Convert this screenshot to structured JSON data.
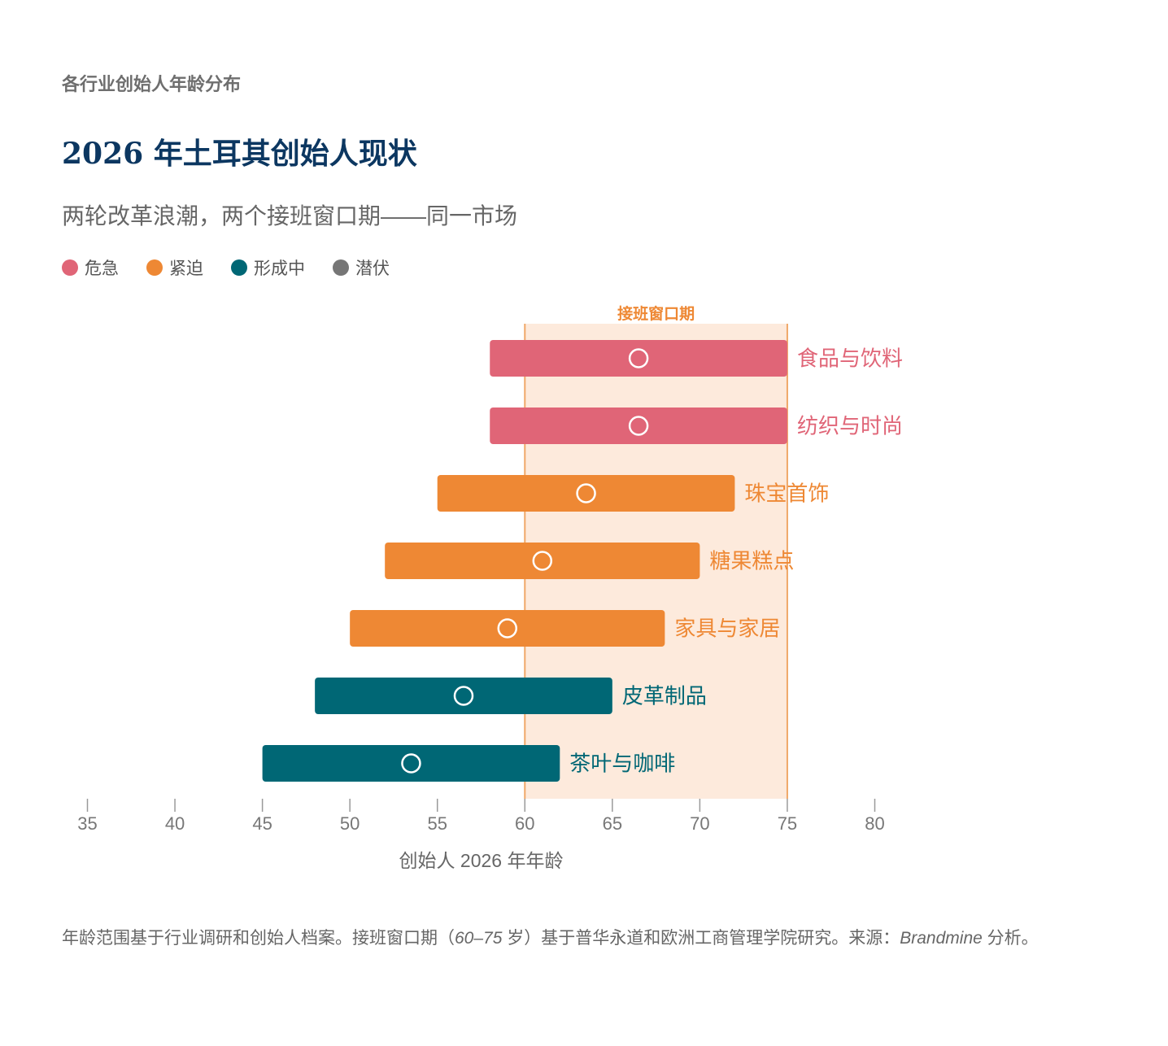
{
  "header": {
    "eyebrow": "各行业创始人年龄分布",
    "title": "2026 年土耳其创始人现状",
    "subtitle": "两轮改革浪潮，两个接班窗口期——同一市场"
  },
  "legend": [
    {
      "label": "危急",
      "color": "#e06577"
    },
    {
      "label": "紧迫",
      "color": "#ee8834"
    },
    {
      "label": "形成中",
      "color": "#006775"
    },
    {
      "label": "潜伏",
      "color": "#767676"
    }
  ],
  "chart_data": {
    "type": "bar",
    "orientation": "horizontal-range",
    "xlabel": "创始人 2026 年年龄",
    "xlim": [
      35,
      80
    ],
    "xticks": [
      35,
      40,
      45,
      50,
      55,
      60,
      65,
      70,
      75,
      80
    ],
    "window": {
      "label": "接班窗口期",
      "start": 60,
      "end": 75,
      "fill": "#fdeadc",
      "line": "#f0a868"
    },
    "series": [
      {
        "category": "食品与饮料",
        "status": "危急",
        "min": 58,
        "max": 75,
        "median": 66.5,
        "color": "#e06577"
      },
      {
        "category": "纺织与时尚",
        "status": "危急",
        "min": 58,
        "max": 75,
        "median": 66.5,
        "color": "#e06577"
      },
      {
        "category": "珠宝首饰",
        "status": "紧迫",
        "min": 55,
        "max": 72,
        "median": 63.5,
        "color": "#ee8834"
      },
      {
        "category": "糖果糕点",
        "status": "紧迫",
        "min": 52,
        "max": 70,
        "median": 61,
        "color": "#ee8834"
      },
      {
        "category": "家具与家居",
        "status": "紧迫",
        "min": 50,
        "max": 68,
        "median": 59,
        "color": "#ee8834"
      },
      {
        "category": "皮革制品",
        "status": "形成中",
        "min": 48,
        "max": 65,
        "median": 56.5,
        "color": "#006775"
      },
      {
        "category": "茶叶与咖啡",
        "status": "形成中",
        "min": 45,
        "max": 62,
        "median": 53.5,
        "color": "#006775"
      }
    ]
  },
  "footnote": {
    "part1": "年龄范围基于行业调研和创始人档案。接班窗口期（",
    "range": "60–75",
    "part2": " 岁）基于普华永道和欧洲工商管理学院研究。来源：",
    "source": "Brandmine",
    "part3": " 分析。"
  }
}
